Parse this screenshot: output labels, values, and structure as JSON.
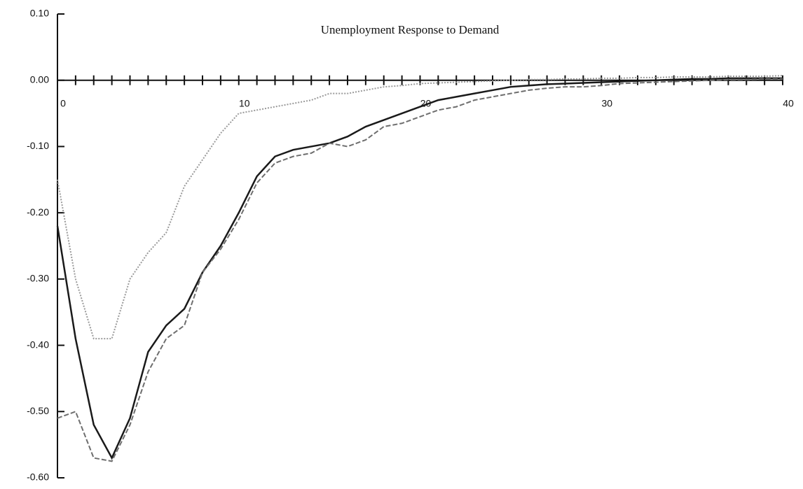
{
  "chart_data": {
    "type": "line",
    "title": "Unemployment Response to Demand",
    "x": [
      0,
      1,
      2,
      3,
      4,
      5,
      6,
      7,
      8,
      9,
      10,
      11,
      12,
      13,
      14,
      15,
      16,
      17,
      18,
      19,
      20,
      21,
      22,
      23,
      24,
      25,
      26,
      27,
      28,
      29,
      30,
      31,
      32,
      33,
      34,
      35,
      36,
      37,
      38,
      39,
      40
    ],
    "series": [
      {
        "color": "#1a1a1a",
        "dash": "solid",
        "values": [
          -0.22,
          -0.39,
          -0.52,
          -0.57,
          -0.51,
          -0.41,
          -0.37,
          -0.345,
          -0.29,
          -0.25,
          -0.2,
          -0.145,
          -0.115,
          -0.105,
          -0.1,
          -0.095,
          -0.085,
          -0.07,
          -0.06,
          -0.05,
          -0.04,
          -0.03,
          -0.025,
          -0.02,
          -0.015,
          -0.01,
          -0.008,
          -0.006,
          -0.005,
          -0.004,
          -0.003,
          -0.002,
          -0.001,
          0,
          0.001,
          0.002,
          0.002,
          0.003,
          0.003,
          0.003,
          0.003
        ]
      },
      {
        "color": "#9a9a9a",
        "dash": "dotted",
        "values": [
          -0.15,
          -0.3,
          -0.39,
          -0.39,
          -0.3,
          -0.26,
          -0.23,
          -0.16,
          -0.12,
          -0.08,
          -0.05,
          -0.045,
          -0.04,
          -0.035,
          -0.03,
          -0.02,
          -0.02,
          -0.015,
          -0.01,
          -0.008,
          -0.005,
          -0.004,
          -0.003,
          -0.002,
          -0.001,
          0,
          0.001,
          0.001,
          0.002,
          0.002,
          0.003,
          0.003,
          0.004,
          0.004,
          0.005,
          0.005,
          0.005,
          0.006,
          0.006,
          0.006,
          0.007
        ]
      },
      {
        "color": "#6e6e6e",
        "dash": "dashed",
        "values": [
          -0.51,
          -0.5,
          -0.57,
          -0.575,
          -0.52,
          -0.44,
          -0.39,
          -0.37,
          -0.29,
          -0.255,
          -0.21,
          -0.155,
          -0.125,
          -0.115,
          -0.11,
          -0.095,
          -0.1,
          -0.09,
          -0.07,
          -0.065,
          -0.055,
          -0.045,
          -0.04,
          -0.03,
          -0.025,
          -0.02,
          -0.015,
          -0.012,
          -0.01,
          -0.01,
          -0.008,
          -0.005,
          -0.004,
          -0.003,
          -0.002,
          -0.001,
          0,
          0.001,
          0.001,
          0.002,
          0.002
        ]
      }
    ],
    "xlim": [
      0,
      40
    ],
    "xticks": [
      0,
      10,
      20,
      30,
      40
    ],
    "ylim": [
      -0.6,
      0.1
    ],
    "yticks": [
      {
        "value": 0.1,
        "label": "0.10"
      },
      {
        "value": 0,
        "label": "0.00"
      },
      {
        "value": -0.1,
        "label": "-0.10"
      },
      {
        "value": -0.2,
        "label": "-0.20"
      },
      {
        "value": -0.3,
        "label": "-0.30"
      },
      {
        "value": -0.4,
        "label": "-0.40"
      },
      {
        "value": -0.5,
        "label": "-0.50"
      },
      {
        "value": -0.6,
        "label": "-0.60"
      }
    ]
  }
}
